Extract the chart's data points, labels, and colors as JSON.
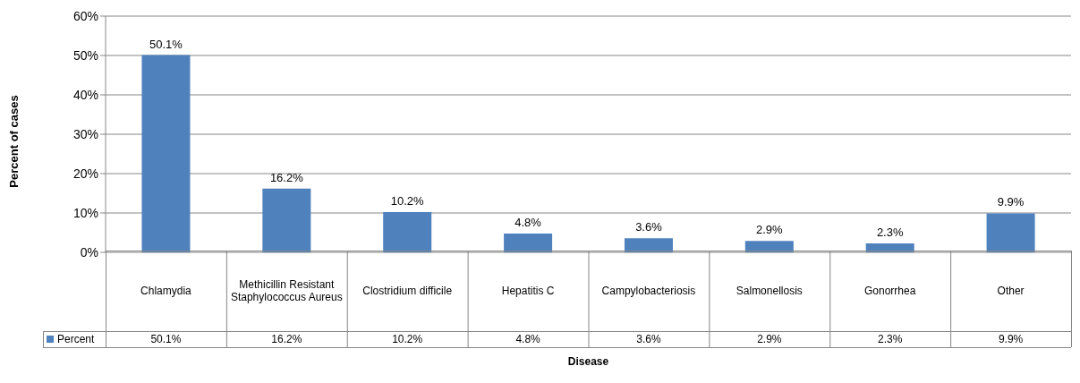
{
  "chart_data": {
    "type": "bar",
    "xlabel": "Disease",
    "ylabel": "Percent of cases",
    "categories": [
      "Chlamydia",
      "Methicillin Resistant Staphylococcus Aureus",
      "Clostridium difficile",
      "Hepatitis C",
      "Campylobacteriosis",
      "Salmonellosis",
      "Gonorrhea",
      "Other"
    ],
    "series": [
      {
        "name": "Percent",
        "color": "#4f81bd",
        "values": [
          50.1,
          16.2,
          10.2,
          4.8,
          3.6,
          2.9,
          2.3,
          9.9
        ],
        "value_labels": [
          "50.1%",
          "16.2%",
          "10.2%",
          "4.8%",
          "3.6%",
          "2.9%",
          "2.3%",
          "9.9%"
        ]
      }
    ],
    "ylim": [
      0,
      60
    ],
    "yticks": [
      {
        "value": 0,
        "label": "0%"
      },
      {
        "value": 10,
        "label": "10%"
      },
      {
        "value": 20,
        "label": "20%"
      },
      {
        "value": 30,
        "label": "30%"
      },
      {
        "value": 40,
        "label": "40%"
      },
      {
        "value": 50,
        "label": "50%"
      },
      {
        "value": 60,
        "label": "60%"
      }
    ],
    "grid": "y",
    "legend": "bottom"
  }
}
